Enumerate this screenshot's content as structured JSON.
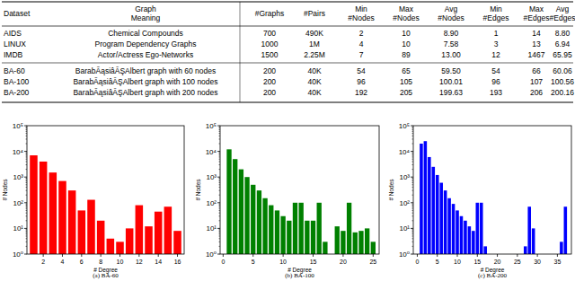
{
  "table": {
    "columns": [
      "Dataset",
      "Graph Meaning",
      "#Graphs",
      "#Pairs",
      "Min #Nodes",
      "Max #Nodes",
      "Avg #Nodes",
      "Min #Edges",
      "Max #Edges",
      "Avg #Edges"
    ],
    "rows": [
      [
        "AIDS",
        "Chemical Compounds",
        "700",
        "490K",
        "2",
        "10",
        "8.90",
        "1",
        "14",
        "8.80"
      ],
      [
        "LINUX",
        "Program Dependency Graphs",
        "1000",
        "1M",
        "4",
        "10",
        "7.58",
        "3",
        "13",
        "6.94"
      ],
      [
        "IMDB",
        "Actor/Actress Ego-Networks",
        "1500",
        "2.25M",
        "7",
        "89",
        "13.00",
        "12",
        "1467",
        "65.95"
      ],
      [
        "BA-60",
        "BarabÃąsiâĂŞAlbert graph with 60 nodes",
        "200",
        "40K",
        "54",
        "65",
        "59.50",
        "54",
        "66",
        "60.06"
      ],
      [
        "BA-100",
        "BarabÃąsiâĂŞAlbert graph with 100 nodes",
        "200",
        "40K",
        "96",
        "105",
        "100.01",
        "96",
        "107",
        "100.56"
      ],
      [
        "BA-200",
        "BarabÃąsiâĂŞAlbert graph with 200 nodes",
        "200",
        "40K",
        "192",
        "205",
        "199.63",
        "193",
        "206",
        "200.16"
      ]
    ]
  },
  "chart_data": [
    {
      "type": "bar",
      "title": "(a) BA-60",
      "x_label": "# Degree",
      "y_label": "# Nodes",
      "color": "#ff0000",
      "log": "y",
      "x": [
        1,
        2,
        3,
        4,
        5,
        6,
        7,
        8,
        9,
        10,
        11,
        12,
        13,
        14,
        15,
        16
      ],
      "values": [
        7000,
        4000,
        1500,
        700,
        300,
        50,
        130,
        20,
        4,
        3,
        10,
        80,
        12,
        45,
        70,
        8
      ],
      "xlim": [
        0.3,
        16.7
      ],
      "xticks": [
        2,
        4,
        6,
        8,
        10,
        12,
        14,
        16
      ],
      "ylim": [
        1,
        100000
      ],
      "yticks": [
        {
          "value": 1,
          "label": "10⁰"
        },
        {
          "value": 10,
          "label": "10¹"
        },
        {
          "value": 100,
          "label": "10²"
        },
        {
          "value": 1000,
          "label": "10³"
        },
        {
          "value": 10000,
          "label": "10⁴"
        },
        {
          "value": 100000,
          "label": "10⁵"
        }
      ]
    },
    {
      "type": "bar",
      "title": "(b) BA-100",
      "x_label": "# Degree",
      "y_label": "# Nodes",
      "color": "#008000",
      "log": "y",
      "x": [
        1,
        2,
        3,
        4,
        5,
        6,
        7,
        8,
        9,
        10,
        11,
        12,
        13,
        14,
        15,
        16,
        17,
        19,
        20,
        21,
        22,
        23,
        24,
        25
      ],
      "values": [
        12000,
        5000,
        2000,
        1000,
        500,
        300,
        150,
        80,
        50,
        30,
        20,
        100,
        100,
        20,
        20,
        100,
        3,
        12,
        8,
        100,
        7,
        8,
        10,
        3
      ],
      "xlim": [
        -0.5,
        26
      ],
      "xticks": [
        0,
        5,
        10,
        15,
        20,
        25
      ],
      "ylim": [
        1,
        100000
      ],
      "yticks": [
        {
          "value": 1,
          "label": "10⁰"
        },
        {
          "value": 10,
          "label": "10¹"
        },
        {
          "value": 100,
          "label": "10²"
        },
        {
          "value": 1000,
          "label": "10³"
        },
        {
          "value": 10000,
          "label": "10⁴"
        },
        {
          "value": 100000,
          "label": "10⁵"
        }
      ]
    },
    {
      "type": "bar",
      "title": "(c) BA-200",
      "x_label": "# Degree",
      "y_label": "# Nodes",
      "color": "#0000ff",
      "log": "y",
      "x": [
        1,
        2,
        3,
        4,
        5,
        6,
        7,
        8,
        9,
        10,
        11,
        12,
        13,
        14,
        15,
        16,
        17,
        27,
        28,
        29,
        36,
        37
      ],
      "values": [
        20000,
        25000,
        6000,
        2500,
        1200,
        600,
        300,
        150,
        90,
        50,
        30,
        20,
        12,
        8,
        100,
        100,
        2,
        2,
        70,
        10,
        3,
        70
      ],
      "xlim": [
        -1,
        38.5
      ],
      "xticks": [
        0,
        5,
        10,
        15,
        20,
        25,
        30,
        35
      ],
      "ylim": [
        1,
        100000
      ],
      "yticks": [
        {
          "value": 1,
          "label": "10⁰"
        },
        {
          "value": 10,
          "label": "10¹"
        },
        {
          "value": 100,
          "label": "10²"
        },
        {
          "value": 1000,
          "label": "10³"
        },
        {
          "value": 10000,
          "label": "10⁴"
        },
        {
          "value": 100000,
          "label": "10⁵"
        }
      ]
    }
  ]
}
